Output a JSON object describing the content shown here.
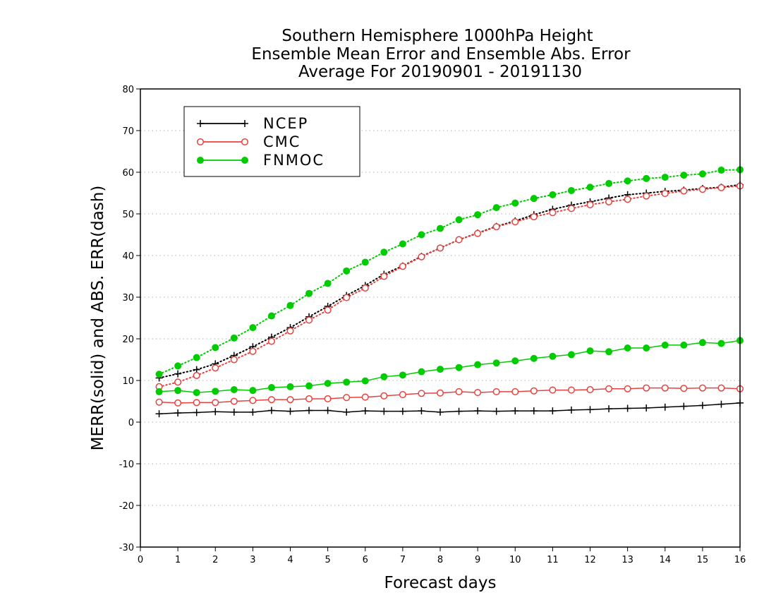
{
  "chart_data": {
    "type": "line",
    "title": [
      "Southern Hemisphere 1000hPa Height",
      "Ensemble Mean Error and Ensemble Abs. Error",
      "Average For 20190901 - 20191130"
    ],
    "xlabel": "Forecast days",
    "ylabel": "MERR(solid) and ABS. ERR(dash)",
    "xlim": [
      0,
      16
    ],
    "ylim": [
      -30,
      80
    ],
    "xticks": [
      0,
      1,
      2,
      3,
      4,
      5,
      6,
      7,
      8,
      9,
      10,
      11,
      12,
      13,
      14,
      15,
      16
    ],
    "yticks": [
      -30,
      -20,
      -10,
      0,
      10,
      20,
      30,
      40,
      50,
      60,
      70,
      80
    ],
    "grid": "horizontal dotted",
    "legend_position": "top-left",
    "x": [
      0.5,
      1,
      1.5,
      2,
      2.5,
      3,
      3.5,
      4,
      4.5,
      5,
      5.5,
      6,
      6.5,
      7,
      7.5,
      8,
      8.5,
      9,
      9.5,
      10,
      10.5,
      11,
      11.5,
      12,
      12.5,
      13,
      13.5,
      14,
      14.5,
      15,
      15.5,
      16
    ],
    "series": [
      {
        "name": "NCEP",
        "color": "#000000",
        "marker": "plus",
        "merr": [
          2.0,
          2.2,
          2.3,
          2.5,
          2.4,
          2.4,
          2.8,
          2.6,
          2.8,
          2.8,
          2.4,
          2.7,
          2.6,
          2.6,
          2.7,
          2.4,
          2.6,
          2.7,
          2.6,
          2.7,
          2.7,
          2.7,
          2.9,
          3.0,
          3.2,
          3.3,
          3.4,
          3.6,
          3.8,
          4.0,
          4.3,
          4.6
        ],
        "abs_err": [
          10.6,
          11.6,
          12.6,
          14.0,
          16.0,
          18.1,
          20.4,
          22.7,
          25.3,
          27.8,
          30.4,
          32.8,
          35.5,
          37.5,
          39.8,
          41.8,
          43.8,
          45.4,
          47.0,
          48.3,
          49.8,
          51.1,
          52.1,
          52.9,
          53.8,
          54.6,
          55.0,
          55.4,
          55.7,
          56.1,
          56.4,
          57.0
        ]
      },
      {
        "name": "CMC",
        "color": "#e8423e",
        "marker": "open-circle",
        "merr": [
          4.8,
          4.6,
          4.7,
          4.7,
          5.0,
          5.2,
          5.4,
          5.4,
          5.6,
          5.6,
          5.9,
          6.0,
          6.3,
          6.6,
          6.9,
          7.0,
          7.3,
          7.1,
          7.3,
          7.3,
          7.5,
          7.7,
          7.7,
          7.8,
          8.0,
          8.0,
          8.2,
          8.2,
          8.1,
          8.2,
          8.2,
          8.0
        ],
        "abs_err": [
          8.5,
          9.6,
          11.2,
          13.0,
          15.0,
          17.0,
          19.4,
          21.9,
          24.5,
          26.9,
          29.9,
          32.2,
          35.0,
          37.4,
          39.7,
          41.8,
          43.8,
          45.3,
          46.9,
          48.1,
          49.3,
          50.3,
          51.3,
          52.2,
          52.9,
          53.5,
          54.3,
          54.9,
          55.5,
          55.9,
          56.3,
          56.7
        ]
      },
      {
        "name": "FNMOC",
        "color": "#00cc00",
        "marker": "filled-circle",
        "merr": [
          7.3,
          7.6,
          7.1,
          7.4,
          7.8,
          7.6,
          8.3,
          8.5,
          8.7,
          9.3,
          9.6,
          9.9,
          10.9,
          11.3,
          12.1,
          12.7,
          13.1,
          13.8,
          14.2,
          14.7,
          15.3,
          15.8,
          16.2,
          17.1,
          16.9,
          17.8,
          17.8,
          18.5,
          18.5,
          19.1,
          18.9,
          19.6
        ],
        "abs_err": [
          11.5,
          13.5,
          15.5,
          17.9,
          20.2,
          22.7,
          25.5,
          28.0,
          30.9,
          33.3,
          36.3,
          38.4,
          40.8,
          42.8,
          45.0,
          46.5,
          48.6,
          49.8,
          51.5,
          52.6,
          53.7,
          54.6,
          55.6,
          56.4,
          57.3,
          57.9,
          58.5,
          58.8,
          59.3,
          59.6,
          60.5,
          60.6
        ]
      }
    ]
  }
}
